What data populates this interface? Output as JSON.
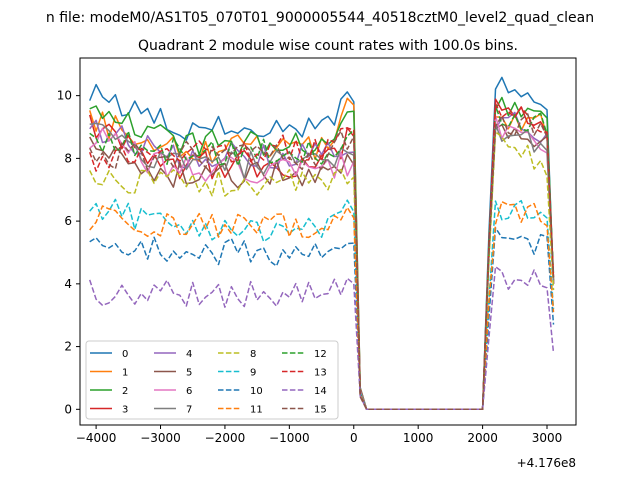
{
  "chart_data": {
    "type": "line",
    "suptitle": "n file: modeM0/AS1T05_070T01_9000005544_40518cztM0_level2_quad_clean",
    "title": "Quadrant 2 module wise count rates with 100.0s bins.",
    "xlabel": "",
    "ylabel": "",
    "x_offset_label": "+4.176e8",
    "xlim": [
      -4250,
      3450
    ],
    "ylim": [
      -0.5,
      11.2
    ],
    "x_ticks": [
      -4000,
      -3000,
      -2000,
      -1000,
      0,
      1000,
      2000,
      3000
    ],
    "x_tick_labels": [
      "−4000",
      "−3000",
      "−2000",
      "−1000",
      "0",
      "1000",
      "2000",
      "3000"
    ],
    "y_ticks": [
      0,
      2,
      4,
      6,
      8,
      10
    ],
    "y_tick_labels": [
      "0",
      "2",
      "4",
      "6",
      "8",
      "10"
    ],
    "grid": false,
    "legend": {
      "placement": "lower-left",
      "columns": 4
    },
    "x_start": -4100,
    "x_step": 100,
    "n_points": 73,
    "gap": {
      "drop_start": -50,
      "near_zero_from": 150,
      "near_zero_to": 1950,
      "rise_end": 2100
    },
    "series": [
      {
        "name": "0",
        "color": "#1f77b4",
        "dash": "solid",
        "before_start": 10.1,
        "before_mean": 9.0,
        "before_end": 9.8,
        "after_start": 10.3,
        "after_mean": 9.9,
        "after_end": 4.0
      },
      {
        "name": "1",
        "color": "#ff7f0e",
        "dash": "solid",
        "before_start": 9.3,
        "before_mean": 8.3,
        "before_end": 9.7,
        "after_start": 9.3,
        "after_mean": 9.0,
        "after_end": 4.1
      },
      {
        "name": "2",
        "color": "#2ca02c",
        "dash": "solid",
        "before_start": 9.6,
        "before_mean": 8.5,
        "before_end": 9.5,
        "after_start": 9.8,
        "after_mean": 9.5,
        "after_end": 4.1
      },
      {
        "name": "3",
        "color": "#d62728",
        "dash": "solid",
        "before_start": 9.0,
        "before_mean": 7.8,
        "before_end": 8.7,
        "after_start": 9.5,
        "after_mean": 9.0,
        "after_end": 4.0
      },
      {
        "name": "4",
        "color": "#9467bd",
        "dash": "solid",
        "before_start": 9.1,
        "before_mean": 8.1,
        "before_end": 8.2,
        "after_start": 9.3,
        "after_mean": 8.8,
        "after_end": 4.0
      },
      {
        "name": "5",
        "color": "#8c564b",
        "dash": "solid",
        "before_start": 8.3,
        "before_mean": 7.5,
        "before_end": 7.8,
        "after_start": 9.2,
        "after_mean": 8.4,
        "after_end": 4.0
      },
      {
        "name": "6",
        "color": "#e377c2",
        "dash": "solid",
        "before_start": 8.7,
        "before_mean": 7.6,
        "before_end": 7.9,
        "after_start": 9.0,
        "after_mean": 8.5,
        "after_end": 4.0
      },
      {
        "name": "7",
        "color": "#7f7f7f",
        "dash": "solid",
        "before_start": 8.8,
        "before_mean": 7.8,
        "before_end": 8.1,
        "after_start": 9.0,
        "after_mean": 8.3,
        "after_end": 4.0
      },
      {
        "name": "8",
        "color": "#bcbd22",
        "dash": "dashed",
        "before_start": 7.4,
        "before_mean": 7.2,
        "before_end": 7.4,
        "after_start": 8.6,
        "after_mean": 7.6,
        "after_end": 3.8
      },
      {
        "name": "9",
        "color": "#17becf",
        "dash": "dashed",
        "before_start": 6.6,
        "before_mean": 5.8,
        "before_end": 6.3,
        "after_start": 6.4,
        "after_mean": 6.3,
        "after_end": 3.2
      },
      {
        "name": "10",
        "color": "#1f77b4",
        "dash": "dashed",
        "before_start": 5.3,
        "before_mean": 5.0,
        "before_end": 5.3,
        "after_start": 5.4,
        "after_mean": 5.2,
        "after_end": 2.7
      },
      {
        "name": "11",
        "color": "#ff7f0e",
        "dash": "dashed",
        "before_start": 6.1,
        "before_mean": 5.8,
        "before_end": 6.1,
        "after_start": 6.3,
        "after_mean": 6.2,
        "after_end": 3.1
      },
      {
        "name": "12",
        "color": "#2ca02c",
        "dash": "dashed",
        "before_start": 8.6,
        "before_mean": 8.2,
        "before_end": 8.9,
        "after_start": 9.3,
        "after_mean": 9.1,
        "after_end": 4.3
      },
      {
        "name": "13",
        "color": "#d62728",
        "dash": "dashed",
        "before_start": 8.0,
        "before_mean": 8.3,
        "before_end": 8.9,
        "after_start": 9.5,
        "after_mean": 9.1,
        "after_end": 4.2
      },
      {
        "name": "14",
        "color": "#9467bd",
        "dash": "dashed",
        "before_start": 3.7,
        "before_mean": 3.7,
        "before_end": 4.0,
        "after_start": 4.2,
        "after_mean": 4.0,
        "after_end": 1.8
      },
      {
        "name": "15",
        "color": "#8c564b",
        "dash": "dashed",
        "before_start": 8.0,
        "before_mean": 8.1,
        "before_end": 8.7,
        "after_start": 9.2,
        "after_mean": 8.9,
        "after_end": 4.2
      }
    ]
  }
}
